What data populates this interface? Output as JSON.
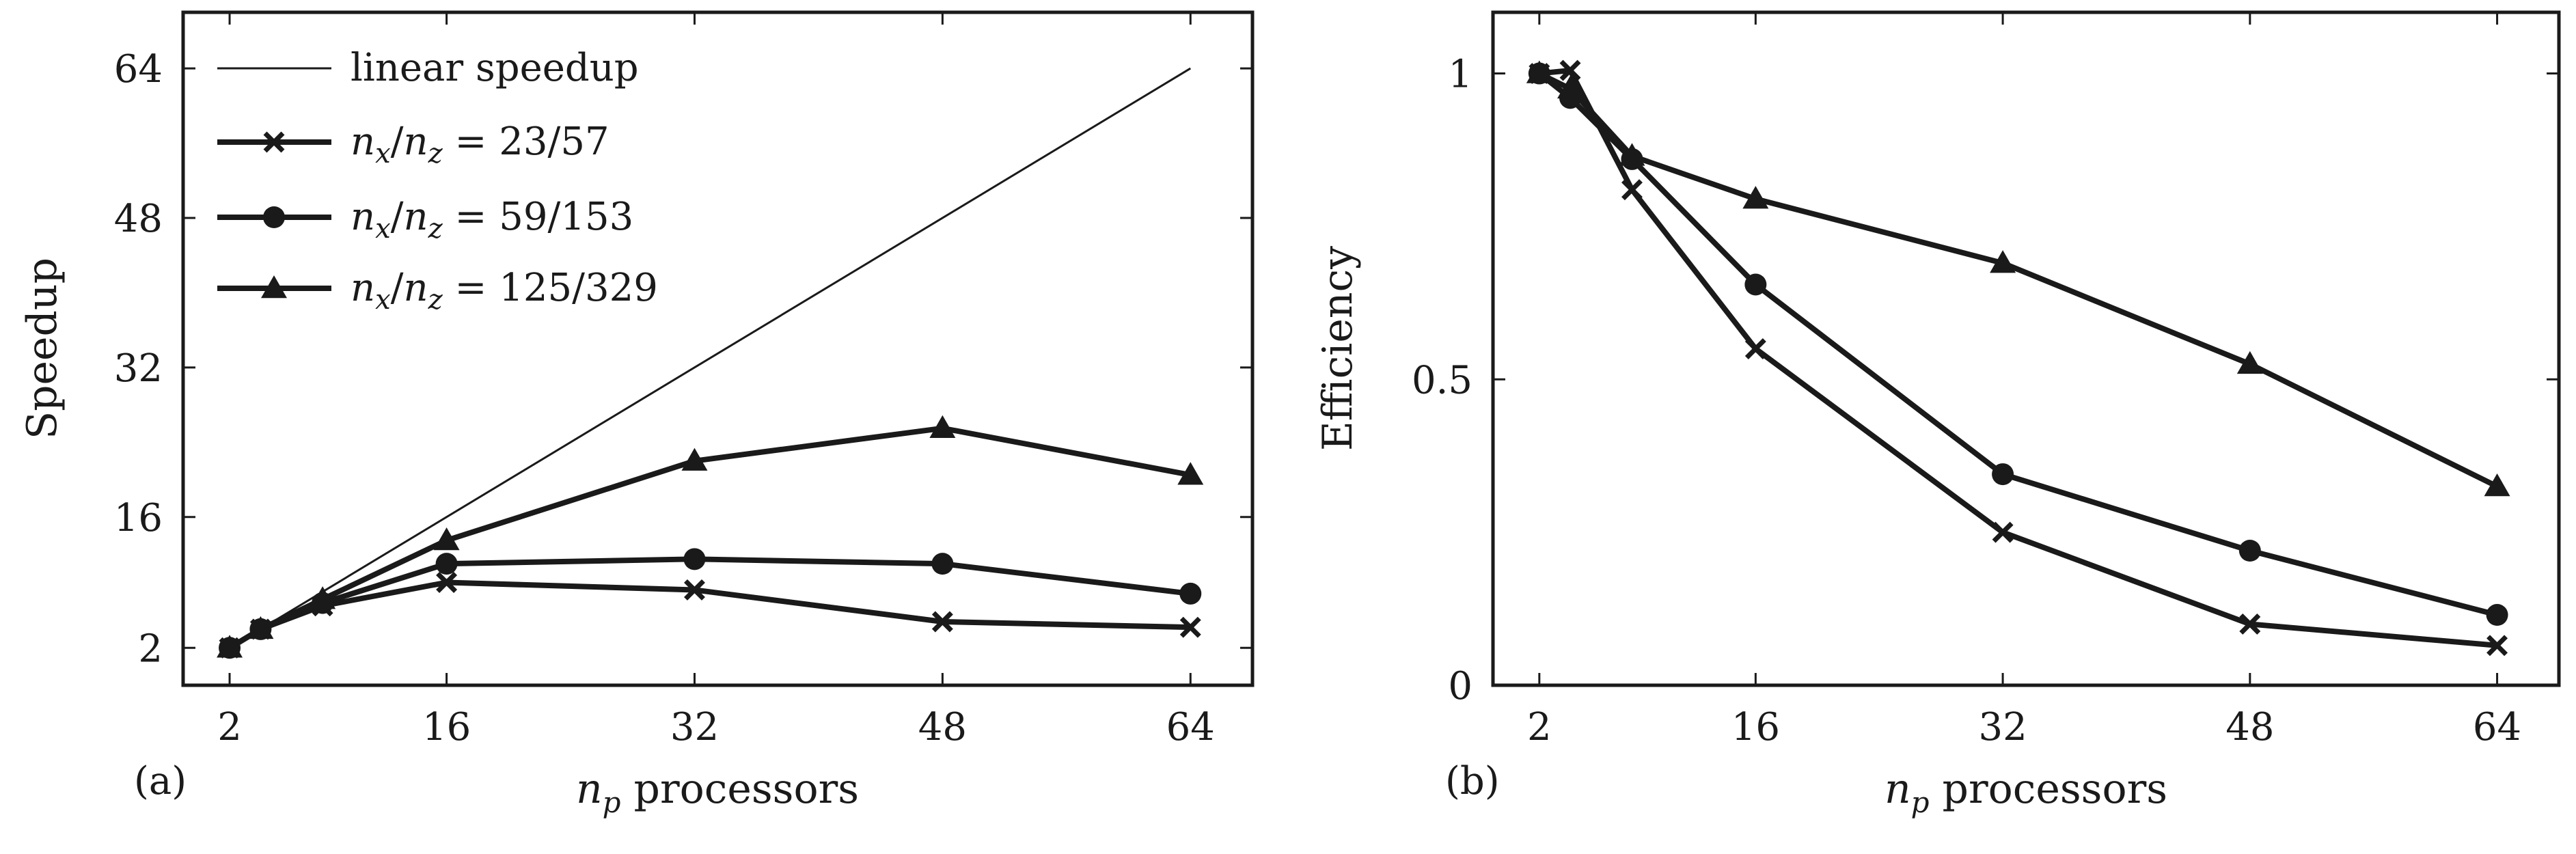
{
  "chart_data": [
    {
      "panel": "(a)",
      "type": "line",
      "xlabel": "n_p processors",
      "ylabel": "Speedup",
      "xlim": [
        -1,
        68
      ],
      "ylim": [
        -2,
        70
      ],
      "xticks": [
        2,
        16,
        32,
        48,
        64
      ],
      "yticks": [
        2,
        16,
        32,
        48,
        64
      ],
      "legend_position": "top-left",
      "reference": {
        "name": "linear speedup",
        "x": [
          2,
          64
        ],
        "y": [
          2,
          64
        ]
      },
      "series": [
        {
          "name": "n_x/n_z = 23/57",
          "marker": "x",
          "x": [
            2,
            4,
            8,
            16,
            32,
            48,
            64
          ],
          "y": [
            2,
            4,
            6.5,
            9,
            8.2,
            4.8,
            4.2
          ]
        },
        {
          "name": "n_x/n_z = 59/153",
          "marker": "circle",
          "x": [
            2,
            4,
            8,
            16,
            32,
            48,
            64
          ],
          "y": [
            2,
            4,
            6.8,
            11,
            11.5,
            11,
            7.8
          ]
        },
        {
          "name": "n_x/n_z = 125/329",
          "marker": "triangle",
          "x": [
            2,
            4,
            8,
            16,
            32,
            48,
            64
          ],
          "y": [
            2,
            4,
            7.2,
            13.5,
            22,
            25.5,
            20.5
          ]
        }
      ]
    },
    {
      "panel": "(b)",
      "type": "line",
      "xlabel": "n_p processors",
      "ylabel": "Efficiency",
      "xlim": [
        -1,
        68
      ],
      "ylim": [
        0,
        1.1
      ],
      "xticks": [
        2,
        16,
        32,
        48,
        64
      ],
      "yticks": [
        0,
        0.5,
        1
      ],
      "series": [
        {
          "name": "n_x/n_z = 23/57",
          "marker": "x",
          "x": [
            2,
            4,
            8,
            16,
            32,
            48,
            64
          ],
          "y": [
            1.0,
            1.005,
            0.81,
            0.55,
            0.25,
            0.1,
            0.065
          ]
        },
        {
          "name": "n_x/n_z = 59/153",
          "marker": "circle",
          "x": [
            2,
            4,
            8,
            16,
            32,
            48,
            64
          ],
          "y": [
            1.0,
            0.96,
            0.86,
            0.655,
            0.345,
            0.22,
            0.115
          ]
        },
        {
          "name": "n_x/n_z = 125/329",
          "marker": "triangle",
          "x": [
            2,
            4,
            8,
            16,
            32,
            48,
            64
          ],
          "y": [
            1.0,
            0.975,
            0.865,
            0.795,
            0.69,
            0.525,
            0.325
          ]
        }
      ]
    }
  ],
  "labels": {
    "ylabel_a": "Speedup",
    "ylabel_b": "Efficiency",
    "xlabel_var": "n",
    "xlabel_sub": "p",
    "xlabel_word": " processors",
    "panel_a": "(a)",
    "panel_b": "(b)",
    "legend_linear": "linear speedup",
    "legend_series": [
      {
        "lhs_n1": "n",
        "lhs_s1": "x",
        "slash": "/",
        "lhs_n2": "n",
        "lhs_s2": "z",
        "rhs": " = 23/57"
      },
      {
        "lhs_n1": "n",
        "lhs_s1": "x",
        "slash": "/",
        "lhs_n2": "n",
        "lhs_s2": "z",
        "rhs": " = 59/153"
      },
      {
        "lhs_n1": "n",
        "lhs_s1": "x",
        "slash": "/",
        "lhs_n2": "n",
        "lhs_s2": "z",
        "rhs": " = 125/329"
      }
    ]
  },
  "tick_labels": {
    "a_x": [
      "2",
      "16",
      "32",
      "48",
      "64"
    ],
    "a_y": [
      "2",
      "16",
      "32",
      "48",
      "64"
    ],
    "b_x": [
      "2",
      "16",
      "32",
      "48",
      "64"
    ],
    "b_y": [
      "0",
      "0.5",
      "1"
    ]
  }
}
